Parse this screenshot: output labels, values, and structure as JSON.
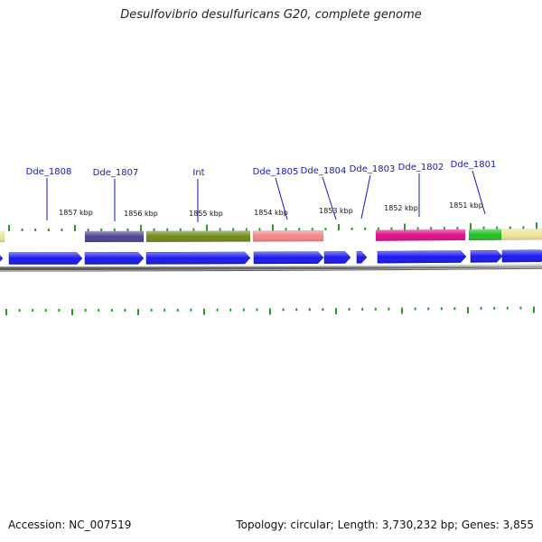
{
  "title": "Desulfovibrio desulfuricans G20, complete genome",
  "footer": {
    "accession": "Accession: NC_007519",
    "info": "Topology: circular; Length: 3,730,232 bp; Genes: 3,855"
  },
  "colors": {
    "forward_gene": "#1a1af0",
    "tick": "#2a9a2a",
    "label": "#1414c8",
    "backbone": "#8c8c8c"
  },
  "scale_labels": [
    {
      "text": "1857 kbp",
      "kbp": 1857
    },
    {
      "text": "1856 kbp",
      "kbp": 1856
    },
    {
      "text": "1855 kbp",
      "kbp": 1855
    },
    {
      "text": "1854 kbp",
      "kbp": 1854
    },
    {
      "text": "1853 kbp",
      "kbp": 1853
    },
    {
      "text": "1852 kbp",
      "kbp": 1852
    },
    {
      "text": "1851 kbp",
      "kbp": 1851
    }
  ],
  "genes": [
    {
      "name": "Dde_1808"
    },
    {
      "name": "Dde_1807"
    },
    {
      "name": "Int"
    },
    {
      "name": "Dde_1805"
    },
    {
      "name": "Dde_1804"
    },
    {
      "name": "Dde_1803"
    },
    {
      "name": "Dde_1802"
    },
    {
      "name": "Dde_1801"
    }
  ],
  "features": [
    {
      "name": "dark-slate-feature",
      "color": "#4a4590"
    },
    {
      "name": "olive-feature",
      "color": "#6f8a1c"
    },
    {
      "name": "salmon-feature",
      "color": "#f08888"
    },
    {
      "name": "magenta-feature",
      "color": "#e0108a"
    },
    {
      "name": "green-feature",
      "color": "#22c022"
    },
    {
      "name": "pale-yellow-feature",
      "color": "#efe69a"
    }
  ]
}
